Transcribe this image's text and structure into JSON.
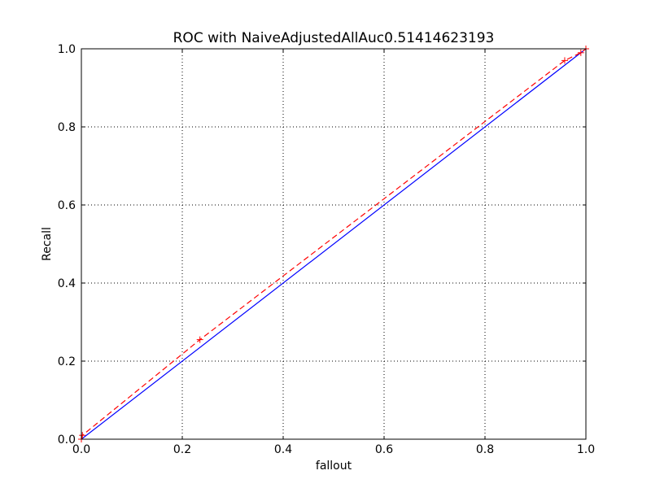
{
  "chart_data": {
    "type": "line",
    "title": "ROC with NaiveAdjustedAllAuc0.51414623193",
    "xlabel": "fallout",
    "ylabel": "Recall",
    "xlim": [
      0.0,
      1.0
    ],
    "ylim": [
      0.0,
      1.0
    ],
    "xticks": [
      "0.0",
      "0.2",
      "0.4",
      "0.6",
      "0.8",
      "1.0"
    ],
    "yticks": [
      "0.0",
      "0.2",
      "0.4",
      "0.6",
      "0.8",
      "1.0"
    ],
    "grid": true,
    "series": [
      {
        "style": "solid",
        "color": "#0000ff",
        "x": [
          0.0,
          1.0
        ],
        "y": [
          0.0,
          1.0
        ]
      },
      {
        "style": "dashed",
        "color": "#ff0000",
        "markers": "plus",
        "x": [
          0.0,
          0.002,
          0.235,
          0.958,
          0.99,
          1.0
        ],
        "y": [
          0.0,
          0.01,
          0.255,
          0.97,
          0.99,
          1.0
        ]
      }
    ]
  }
}
